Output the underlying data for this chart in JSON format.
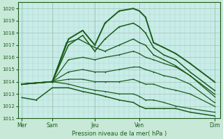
{
  "background_color": "#c8e8d8",
  "plot_bg_color": "#c8ece8",
  "grid_major_color": "#99bbaa",
  "grid_minor_color": "#aaccbb",
  "line_color": "#1a5c1a",
  "xlabel_text": "Pression niveau de la mer( hPa )",
  "x_tick_labels": [
    "Mer",
    "Sam",
    "Jeu",
    "Ven",
    "Dim"
  ],
  "x_tick_positions": [
    0.02,
    0.17,
    0.38,
    0.6,
    0.97
  ],
  "ylim": [
    1011.0,
    1020.5
  ],
  "xlim": [
    0.0,
    1.0
  ],
  "yticks": [
    1011,
    1012,
    1013,
    1014,
    1015,
    1016,
    1017,
    1018,
    1019,
    1020
  ],
  "series": [
    {
      "x": [
        0.02,
        0.17,
        0.25,
        0.32,
        0.38,
        0.43,
        0.5,
        0.57,
        0.6,
        0.63,
        0.67,
        0.72,
        0.78,
        0.85,
        0.97
      ],
      "y": [
        1013.8,
        1014.0,
        1017.5,
        1018.2,
        1017.0,
        1018.8,
        1019.8,
        1020.0,
        1019.8,
        1019.3,
        1017.2,
        1016.8,
        1016.3,
        1015.5,
        1014.0
      ],
      "lw": 1.4
    },
    {
      "x": [
        0.02,
        0.17,
        0.25,
        0.32,
        0.38,
        0.43,
        0.5,
        0.57,
        0.6,
        0.63,
        0.67,
        0.72,
        0.78,
        0.85,
        0.97
      ],
      "y": [
        1013.8,
        1014.0,
        1017.0,
        1017.8,
        1016.5,
        1017.5,
        1018.5,
        1018.8,
        1018.5,
        1018.0,
        1016.8,
        1016.2,
        1015.8,
        1014.8,
        1013.3
      ],
      "lw": 1.1
    },
    {
      "x": [
        0.02,
        0.17,
        0.24,
        0.3,
        0.38,
        0.43,
        0.5,
        0.57,
        0.6,
        0.63,
        0.67,
        0.72,
        0.78,
        0.85,
        0.97
      ],
      "y": [
        1013.8,
        1014.0,
        1017.2,
        1017.5,
        1016.8,
        1016.5,
        1017.0,
        1017.5,
        1017.2,
        1017.0,
        1016.2,
        1015.8,
        1015.3,
        1014.5,
        1013.0
      ],
      "lw": 1.0
    },
    {
      "x": [
        0.02,
        0.17,
        0.25,
        0.32,
        0.38,
        0.43,
        0.5,
        0.57,
        0.6,
        0.63,
        0.67,
        0.72,
        0.78,
        0.85,
        0.97
      ],
      "y": [
        1013.8,
        1014.0,
        1015.8,
        1016.0,
        1015.8,
        1016.0,
        1016.2,
        1016.5,
        1016.3,
        1016.0,
        1015.8,
        1015.5,
        1015.2,
        1014.5,
        1012.8
      ],
      "lw": 0.9
    },
    {
      "x": [
        0.02,
        0.17,
        0.25,
        0.32,
        0.38,
        0.43,
        0.5,
        0.57,
        0.6,
        0.63,
        0.67,
        0.72,
        0.78,
        0.85,
        0.97
      ],
      "y": [
        1013.8,
        1014.0,
        1014.8,
        1015.0,
        1014.8,
        1014.8,
        1015.0,
        1015.2,
        1015.2,
        1015.0,
        1014.8,
        1014.5,
        1014.3,
        1013.8,
        1012.3
      ],
      "lw": 0.9
    },
    {
      "x": [
        0.02,
        0.17,
        0.25,
        0.32,
        0.38,
        0.43,
        0.5,
        0.57,
        0.6,
        0.63,
        0.67,
        0.72,
        0.78,
        0.85,
        0.97
      ],
      "y": [
        1013.8,
        1014.0,
        1014.2,
        1014.2,
        1014.0,
        1014.0,
        1014.0,
        1014.2,
        1014.0,
        1013.8,
        1013.8,
        1013.5,
        1013.3,
        1013.0,
        1012.0
      ],
      "lw": 0.9
    },
    {
      "x": [
        0.02,
        0.17,
        0.25,
        0.32,
        0.38,
        0.43,
        0.5,
        0.57,
        0.6,
        0.63,
        0.67,
        0.72,
        0.78,
        0.85,
        0.97
      ],
      "y": [
        1013.8,
        1014.0,
        1013.8,
        1013.5,
        1013.3,
        1013.2,
        1013.0,
        1013.0,
        1012.8,
        1012.5,
        1012.5,
        1012.3,
        1012.0,
        1011.8,
        1011.5
      ],
      "lw": 0.9
    },
    {
      "x": [
        0.02,
        0.09,
        0.17,
        0.25,
        0.32,
        0.38,
        0.43,
        0.5,
        0.57,
        0.6,
        0.63,
        0.67,
        0.72,
        0.78,
        0.85,
        0.97
      ],
      "y": [
        1012.7,
        1012.5,
        1013.5,
        1013.5,
        1013.2,
        1013.0,
        1012.8,
        1012.5,
        1012.3,
        1012.0,
        1011.8,
        1011.8,
        1011.8,
        1011.8,
        1011.5,
        1011.2
      ],
      "lw": 1.1
    }
  ]
}
